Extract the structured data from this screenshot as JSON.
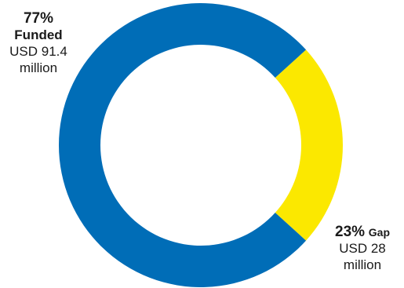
{
  "chart_data": {
    "type": "pie",
    "donut": true,
    "slices": [
      {
        "name": "Funded",
        "percent_label": "77%",
        "amount_label": "USD 91.4 million",
        "value": 91.4,
        "percent": 77,
        "color": "#006db7"
      },
      {
        "name": "Gap",
        "percent_label": "23%",
        "amount_label": "USD 28 million",
        "value": 28,
        "percent": 23,
        "color": "#fbe800"
      }
    ]
  },
  "labels": {
    "funded": {
      "pct": "77%",
      "name": "Funded",
      "amount_line1": "USD 91.4",
      "amount_line2": "million"
    },
    "gap": {
      "pct": "23%",
      "name": "Gap",
      "amount_line1": "USD 28",
      "amount_line2": "million"
    }
  }
}
